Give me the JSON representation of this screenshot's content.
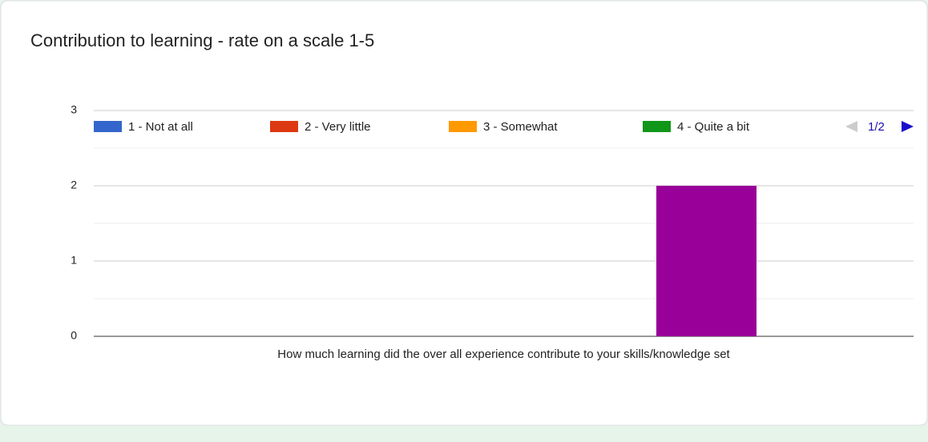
{
  "chart_data": {
    "type": "bar",
    "title": "Contribution to learning - rate on a scale 1-5",
    "categories": [
      "How much learning did the over all experience contribute to your skills/knowledge set"
    ],
    "series": [
      {
        "name": "1 - Not at all",
        "color": "#3366cc",
        "values": [
          0
        ]
      },
      {
        "name": "2 - Very little",
        "color": "#dc3912",
        "values": [
          0
        ]
      },
      {
        "name": "3 - Somewhat",
        "color": "#ff9900",
        "values": [
          0
        ]
      },
      {
        "name": "4 - Quite a bit",
        "color": "#109618",
        "values": [
          0
        ]
      },
      {
        "color": "#990099",
        "values": [
          2
        ]
      }
    ],
    "ylim": [
      0,
      3
    ],
    "yticks": [
      0,
      1,
      2,
      3
    ],
    "grid": true,
    "minor_grid": true,
    "legend": "top",
    "legend_page": "1/2"
  }
}
